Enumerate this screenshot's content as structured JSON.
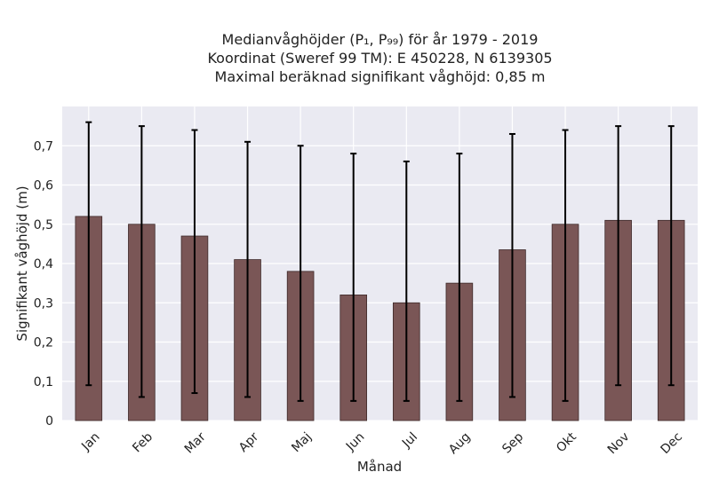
{
  "chart_data": {
    "type": "bar",
    "title_lines": [
      "Medianvåghöjder (P₁, P₉₉) för år 1979 - 2019",
      "Koordinat (Sweref 99 TM): E 450228, N 6139305",
      "Maximal beräknad signifikant våghöjd: 0,85 m"
    ],
    "xlabel": "Månad",
    "ylabel": "Signifikant våghöjd (m)",
    "categories": [
      "Jan",
      "Feb",
      "Mar",
      "Apr",
      "Maj",
      "Jun",
      "Jul",
      "Aug",
      "Sep",
      "Okt",
      "Nov",
      "Dec"
    ],
    "series": [
      {
        "values": [
          0.52,
          0.5,
          0.47,
          0.41,
          0.38,
          0.32,
          0.3,
          0.35,
          0.435,
          0.5,
          0.51,
          0.51
        ],
        "p1": [
          0.09,
          0.06,
          0.07,
          0.06,
          0.05,
          0.05,
          0.05,
          0.05,
          0.06,
          0.05,
          0.09,
          0.09
        ],
        "p99": [
          0.76,
          0.75,
          0.74,
          0.71,
          0.7,
          0.68,
          0.66,
          0.68,
          0.73,
          0.74,
          0.75,
          0.75
        ]
      }
    ],
    "ylim": [
      0,
      0.8
    ],
    "yticks": [
      0,
      0.1,
      0.2,
      0.3,
      0.4,
      0.5,
      0.6,
      0.7
    ],
    "ytick_labels": [
      "0",
      "0,1",
      "0,2",
      "0,3",
      "0,4",
      "0,5",
      "0,6",
      "0,7"
    ],
    "grid": true,
    "colors": {
      "bar": "#7a5656",
      "bar_edge": "#3e2a2a",
      "errorbar": "#000000",
      "plot_bg": "#eaeaf2",
      "grid": "#ffffff"
    }
  }
}
